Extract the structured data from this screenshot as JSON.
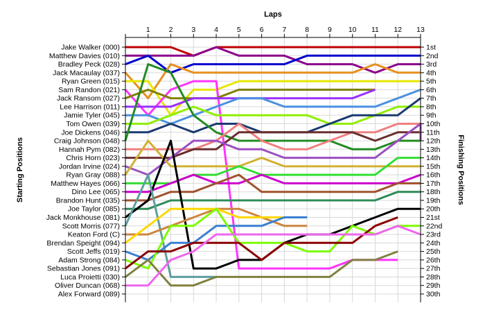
{
  "chart_data": {
    "type": "line",
    "title": "Laps",
    "ylabel": "Starting Positions",
    "y2label": "Finishing Positions",
    "laps": [
      1,
      2,
      3,
      4,
      5,
      6,
      7,
      8,
      9,
      10,
      11,
      12,
      13
    ],
    "grid": true,
    "starting_labels": [
      "Jake Walker (000)",
      "Matthew Davies (010)",
      "Bradley Peck (028)",
      "Jack Macaulay (037)",
      "Ryan Green (015)",
      "Sam Randon (021)",
      "Jack Ransom (027)",
      "Lee Harrison (011)",
      "Jamie Tyler (045)",
      "Tom Owen (039)",
      "Joe Dickens (046)",
      "Craig Johnson (048)",
      "Hannah Pym (082)",
      "Chris Horn (023)",
      "Jordan Irvine (024)",
      "Ryan Gray (088)",
      "Matthew Hayes (066)",
      "Dino Lee (065)",
      "Brandon Hunt (035)",
      "Joe Taylor (085)",
      "Jack Monkhouse (081)",
      "Scott Morris (077)",
      "Keaton Ford (C)",
      "Brendan Speight (094)",
      "Scott Jeffs (019)",
      "Adam Strong (084)",
      "Sebastian Jones (091)",
      "Luca Proietti (030)",
      "Oliver Duncan (068)",
      "Alex Forward (089)"
    ],
    "finishing_labels": [
      "1st",
      "2nd",
      "3rd",
      "4th",
      "5th",
      "6th",
      "7th",
      "8th",
      "9th",
      "10th",
      "11th",
      "12th",
      "13th",
      "14th",
      "15th",
      "16th",
      "17th",
      "18th",
      "19th",
      "20th",
      "21st",
      "22nd",
      "23rd",
      "24th",
      "25th",
      "26th",
      "27th",
      "28th",
      "29th",
      "30th"
    ],
    "series": [
      {
        "start": 1,
        "color": "#c00000",
        "positions": [
          1,
          1,
          2,
          1,
          1,
          1,
          1,
          1,
          1,
          1,
          1,
          1,
          1,
          1
        ]
      },
      {
        "start": 2,
        "color": "#8b008b",
        "positions": [
          2,
          2,
          2,
          1,
          2,
          2,
          2,
          3,
          3,
          3,
          4,
          3,
          3,
          3
        ]
      },
      {
        "start": 3,
        "color": "#0000cd",
        "positions": [
          2,
          4,
          3,
          3,
          3,
          3,
          3,
          2,
          2,
          2,
          2,
          2,
          2,
          2
        ]
      },
      {
        "start": 4,
        "color": "#e69020",
        "positions": [
          7,
          3,
          4,
          4,
          4,
          4,
          4,
          4,
          4,
          4,
          3,
          4,
          4,
          4
        ]
      },
      {
        "start": 5,
        "color": "#e6e600",
        "positions": [
          5,
          9,
          6,
          6,
          5,
          5,
          5,
          5,
          5,
          5,
          5,
          5,
          5,
          5
        ]
      },
      {
        "start": 6,
        "color": "#ff33ff",
        "positions": [
          9,
          6,
          5,
          5,
          27,
          27,
          27,
          27,
          27,
          26,
          26,
          26
        ]
      },
      {
        "start": 7,
        "color": "#808000",
        "positions": [
          6,
          7,
          7,
          7,
          6,
          6,
          6,
          6,
          6,
          6,
          6
        ]
      },
      {
        "start": 8,
        "color": "#9a30ff",
        "positions": [
          8,
          8,
          7,
          7,
          7,
          7,
          7,
          7,
          7,
          7,
          6
        ]
      },
      {
        "start": 9,
        "color": "#4a90e0",
        "positions": [
          9,
          10,
          9,
          8,
          7,
          7,
          8,
          8,
          8,
          8,
          8,
          7,
          6,
          6
        ]
      },
      {
        "start": 10,
        "color": "#90ee00",
        "positions": [
          10,
          9,
          8,
          9,
          9,
          9,
          9,
          9,
          10,
          10,
          9,
          8,
          8,
          8
        ]
      },
      {
        "start": 11,
        "color": "#1a3a70",
        "positions": [
          11,
          10,
          11,
          10,
          10,
          11,
          11,
          11,
          10,
          9,
          9,
          9,
          7,
          7
        ]
      },
      {
        "start": 12,
        "color": "#228b22",
        "positions": [
          3,
          4,
          9,
          11,
          12,
          12,
          12,
          12,
          12,
          13,
          13,
          12,
          12,
          12
        ]
      },
      {
        "start": 13,
        "color": "#f08080",
        "positions": [
          13,
          13,
          13,
          12,
          10,
          12,
          13,
          13,
          12,
          11,
          11,
          10,
          10,
          10
        ]
      },
      {
        "start": 14,
        "color": "#6b2e2e",
        "positions": [
          14,
          14,
          13,
          13,
          11,
          11,
          11,
          11,
          11,
          11,
          12,
          11,
          11,
          11
        ]
      },
      {
        "start": 15,
        "color": "#9b4fc0",
        "positions": [
          16,
          14,
          12,
          12,
          13,
          13,
          14,
          14,
          14,
          14,
          14,
          12,
          10,
          12
        ]
      },
      {
        "start": 16,
        "color": "#d2b030",
        "positions": [
          12,
          15,
          15,
          15,
          15,
          14,
          15,
          15,
          15,
          15,
          15,
          15,
          15,
          15
        ]
      },
      {
        "start": 17,
        "color": "#33dd33",
        "positions": [
          17,
          17,
          16,
          16,
          15,
          16,
          16,
          16,
          16,
          16,
          16,
          14,
          14,
          14
        ]
      },
      {
        "start": 18,
        "color": "#cc00cc",
        "positions": [
          18,
          17,
          16,
          17,
          17,
          16,
          17,
          17,
          17,
          17,
          17,
          17,
          16,
          16
        ]
      },
      {
        "start": 19,
        "color": "#a0522d",
        "positions": [
          19,
          18,
          18,
          17,
          16,
          18,
          18,
          18,
          18,
          18,
          18,
          17,
          17,
          17
        ]
      },
      {
        "start": 20,
        "color": "#2e8b57",
        "positions": [
          20,
          19,
          19,
          19,
          19,
          19,
          19,
          19,
          19,
          19,
          19,
          18,
          18,
          18
        ]
      },
      {
        "start": 21,
        "color": "#000000",
        "positions": [
          19,
          12,
          27,
          27,
          26,
          26,
          24,
          23,
          23,
          22,
          21,
          20,
          20,
          20
        ]
      },
      {
        "start": 22,
        "color": "#5f9ea0",
        "positions": [
          16,
          28,
          28,
          28
        ]
      },
      {
        "start": 23,
        "color": "#cd853f",
        "positions": [
          23,
          22,
          21,
          20,
          20,
          21,
          22,
          22
        ]
      },
      {
        "start": 24,
        "color": "#ffd700",
        "positions": [
          22,
          20,
          20,
          20,
          21,
          21,
          21,
          21
        ]
      },
      {
        "start": 25,
        "color": "#3a7fd0",
        "positions": [
          26,
          24,
          24,
          22,
          22,
          22,
          21,
          21
        ]
      },
      {
        "start": 26,
        "color": "#7cfc00",
        "positions": [
          27,
          22,
          22,
          20,
          24,
          24,
          24,
          25,
          25,
          22,
          23,
          22,
          22
        ]
      },
      {
        "start": 27,
        "color": "#8b0000",
        "positions": [
          25,
          25,
          24,
          24,
          24,
          26,
          24,
          24,
          24,
          24,
          22,
          21
        ]
      },
      {
        "start": 28,
        "color": "#808040",
        "positions": [
          26,
          29,
          29,
          28,
          28,
          28,
          28,
          28,
          28,
          26,
          26,
          25
        ]
      },
      {
        "start": 29,
        "color": "#ee66ee",
        "positions": [
          29,
          26,
          25,
          23,
          23,
          23,
          23,
          23,
          23,
          23,
          23,
          22,
          23
        ]
      },
      {
        "start": 30,
        "color": "#a0b030",
        "positions": []
      }
    ]
  }
}
